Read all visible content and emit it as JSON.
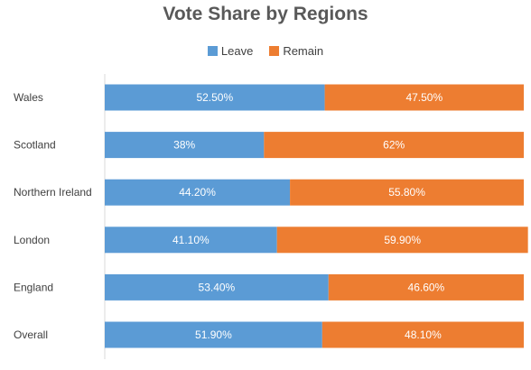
{
  "chart_data": {
    "type": "bar",
    "orientation": "horizontal",
    "stacked": true,
    "title": "Vote Share by Regions",
    "xlabel": "",
    "ylabel": "",
    "xlim": [
      0,
      100
    ],
    "grid": false,
    "legend_position": "top",
    "categories": [
      "Wales",
      "Scotland",
      "Northern Ireland",
      "London",
      "England",
      "Overall"
    ],
    "series": [
      {
        "name": "Leave",
        "color": "#5b9bd5",
        "values": [
          52.5,
          38,
          44.2,
          41.1,
          53.4,
          51.9
        ],
        "labels": [
          "52.50%",
          "38%",
          "44.20%",
          "41.10%",
          "53.40%",
          "51.90%"
        ]
      },
      {
        "name": "Remain",
        "color": "#ed7d31",
        "values": [
          47.5,
          62,
          55.8,
          59.9,
          46.6,
          48.1
        ],
        "labels": [
          "47.50%",
          "62%",
          "55.80%",
          "59.90%",
          "46.60%",
          "48.10%"
        ]
      }
    ]
  }
}
